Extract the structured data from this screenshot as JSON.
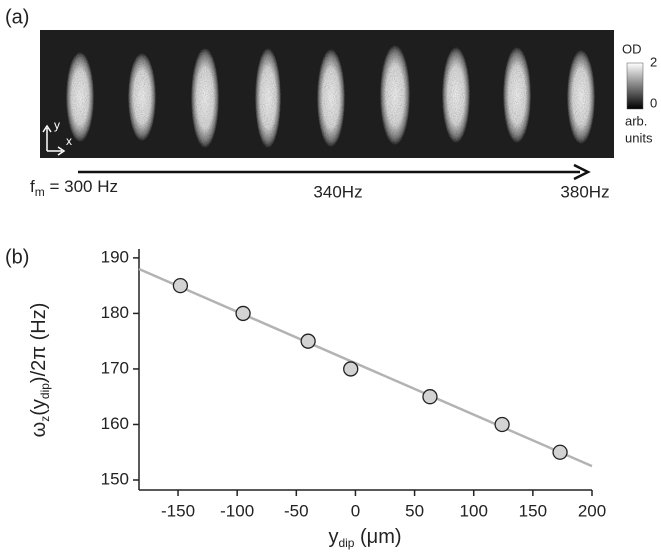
{
  "panel_a": {
    "label": "(a)",
    "colorbar": {
      "title": "OD",
      "max": 2,
      "min": 0,
      "unit": [
        "arb.",
        "units"
      ]
    },
    "axes": {
      "y": "y",
      "x": "x"
    },
    "arrow_labels": {
      "start": [
        "f",
        "m",
        " = 300 Hz"
      ],
      "middle": "340Hz",
      "end": "380Hz"
    }
  },
  "chart_data": {
    "type": "scatter",
    "panel_label": "(b)",
    "xlabel": [
      "y",
      "dip",
      " (μm)"
    ],
    "ylabel": [
      "ω",
      "z",
      "(y",
      "dip",
      ")/2π (Hz)"
    ],
    "x": [
      -148,
      -95,
      -40,
      -4,
      63,
      124,
      173
    ],
    "values": [
      185,
      180,
      175,
      170,
      165,
      160,
      155
    ],
    "color": "#d3d3d3",
    "fit": {
      "x": [
        -183,
        200
      ],
      "values": [
        188,
        152.5
      ],
      "color": "#b3b3b3"
    },
    "xlim": [
      -183,
      200
    ],
    "ylim": [
      148.2,
      191.6
    ],
    "xticks": [
      -150,
      -100,
      -50,
      0,
      50,
      100,
      150,
      200
    ],
    "yticks": [
      150,
      160,
      170,
      180,
      190
    ],
    "grid": false
  }
}
